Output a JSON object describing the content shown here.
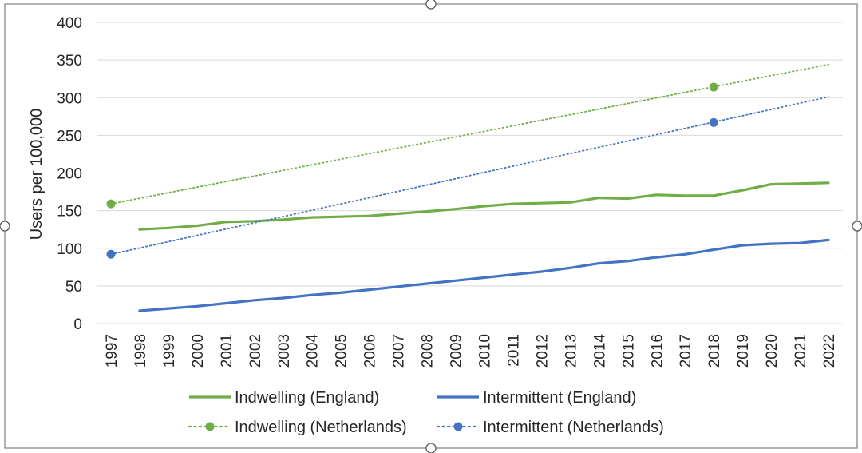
{
  "chart_data": {
    "type": "line",
    "title": "",
    "xlabel": "",
    "ylabel": "Users per 100,000",
    "ylim": [
      0,
      400
    ],
    "yticks": [
      0,
      50,
      100,
      150,
      200,
      250,
      300,
      350,
      400
    ],
    "x": [
      "1997",
      "1998",
      "1999",
      "2000",
      "2001",
      "2002",
      "2003",
      "2004",
      "2005",
      "2006",
      "2007",
      "2008",
      "2009",
      "2010",
      "2011",
      "2012",
      "2013",
      "2014",
      "2015",
      "2016",
      "2017",
      "2018",
      "2019",
      "2020",
      "2021",
      "2022"
    ],
    "grid": true,
    "legend_position": "bottom",
    "series": [
      {
        "name": "Indwelling (England)",
        "style": "solid",
        "color": "#70ad47",
        "points": [
          {
            "x": "1998",
            "y": 125
          },
          {
            "x": "1999",
            "y": 127
          },
          {
            "x": "2000",
            "y": 130
          },
          {
            "x": "2001",
            "y": 135
          },
          {
            "x": "2002",
            "y": 136
          },
          {
            "x": "2003",
            "y": 138
          },
          {
            "x": "2004",
            "y": 141
          },
          {
            "x": "2005",
            "y": 142
          },
          {
            "x": "2006",
            "y": 143
          },
          {
            "x": "2007",
            "y": 146
          },
          {
            "x": "2008",
            "y": 149
          },
          {
            "x": "2009",
            "y": 152
          },
          {
            "x": "2010",
            "y": 156
          },
          {
            "x": "2011",
            "y": 159
          },
          {
            "x": "2012",
            "y": 160
          },
          {
            "x": "2013",
            "y": 161
          },
          {
            "x": "2014",
            "y": 167
          },
          {
            "x": "2015",
            "y": 166
          },
          {
            "x": "2016",
            "y": 171
          },
          {
            "x": "2017",
            "y": 170
          },
          {
            "x": "2018",
            "y": 170
          },
          {
            "x": "2019",
            "y": 177
          },
          {
            "x": "2020",
            "y": 185
          },
          {
            "x": "2021",
            "y": 186
          },
          {
            "x": "2022",
            "y": 187
          }
        ]
      },
      {
        "name": "Intermittent (England)",
        "style": "solid",
        "color": "#4472c4",
        "points": [
          {
            "x": "1998",
            "y": 17
          },
          {
            "x": "1999",
            "y": 20
          },
          {
            "x": "2000",
            "y": 23
          },
          {
            "x": "2001",
            "y": 27
          },
          {
            "x": "2002",
            "y": 31
          },
          {
            "x": "2003",
            "y": 34
          },
          {
            "x": "2004",
            "y": 38
          },
          {
            "x": "2005",
            "y": 41
          },
          {
            "x": "2006",
            "y": 45
          },
          {
            "x": "2007",
            "y": 49
          },
          {
            "x": "2008",
            "y": 53
          },
          {
            "x": "2009",
            "y": 57
          },
          {
            "x": "2010",
            "y": 61
          },
          {
            "x": "2011",
            "y": 65
          },
          {
            "x": "2012",
            "y": 69
          },
          {
            "x": "2013",
            "y": 74
          },
          {
            "x": "2014",
            "y": 80
          },
          {
            "x": "2015",
            "y": 83
          },
          {
            "x": "2016",
            "y": 88
          },
          {
            "x": "2017",
            "y": 92
          },
          {
            "x": "2018",
            "y": 98
          },
          {
            "x": "2019",
            "y": 104
          },
          {
            "x": "2020",
            "y": 106
          },
          {
            "x": "2021",
            "y": 107
          },
          {
            "x": "2022",
            "y": 111
          }
        ]
      },
      {
        "name": "Indwelling (Netherlands)",
        "style": "dotted",
        "color": "#70ad47",
        "markers": [
          {
            "x": "1997",
            "y": 159
          },
          {
            "x": "2018",
            "y": 314
          }
        ],
        "trend": [
          {
            "x": "1997",
            "y": 159
          },
          {
            "x": "2022",
            "y": 344
          }
        ]
      },
      {
        "name": "Intermittent (Netherlands)",
        "style": "dotted",
        "color": "#4472c4",
        "markers": [
          {
            "x": "1997",
            "y": 92
          },
          {
            "x": "2018",
            "y": 267
          }
        ],
        "trend": [
          {
            "x": "1997",
            "y": 92
          },
          {
            "x": "2022",
            "y": 301
          }
        ]
      }
    ]
  }
}
